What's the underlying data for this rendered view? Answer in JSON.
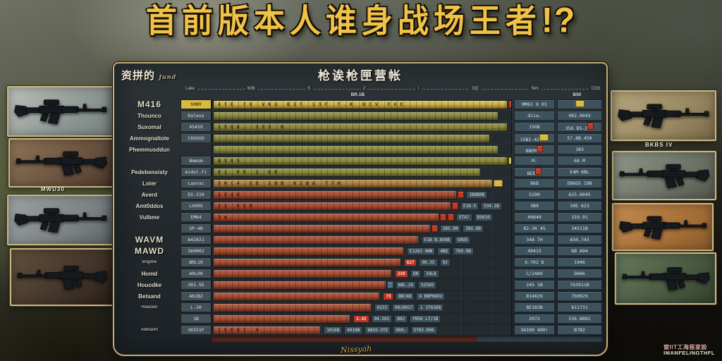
{
  "title": {
    "text": "首前版本人谁身战场王者",
    "punct": "!?"
  },
  "board": {
    "corner_label": "资拼的",
    "corner_script": "Jund",
    "header": "枪诶枪匣营帐",
    "ticks": [
      "Lake",
      "60B",
      "5",
      "2",
      "i",
      "OQ",
      "Sim",
      "CO3"
    ],
    "center_label": "BR.1B",
    "right_label": "B50",
    "signature": "Nissyah",
    "rows": [
      {
        "label": "M416",
        "size": "lg",
        "cell": "SONY",
        "bar": "gold",
        "w": 99,
        "text": "4TE  7X  VKU  BIT  13F  T.R  BIV  FUE",
        "chips": [
          "red"
        ],
        "tail": [],
        "ra": "MM62 8 03",
        "rb": "",
        "rb_chip": "gold"
      },
      {
        "label": "Thounco",
        "size": "md",
        "cell": "Daleus",
        "bar": "olive",
        "w": 96,
        "text": "",
        "chips": [],
        "tail": [],
        "ra": "diia.",
        "rb": "482.6043"
      },
      {
        "label": "Suxomal",
        "size": "md",
        "cell": "45459",
        "bar": "olive",
        "w": 99,
        "text": "15GB.  355 B",
        "chips": [],
        "tail": [],
        "ra": "15GB",
        "rb": "356 B5-2",
        "rb_chip": "red"
      },
      {
        "label": "Ammognaltote",
        "size": "md",
        "cell": "CAGUGO",
        "bar": "olive",
        "w": 93,
        "text": "",
        "chips": [],
        "tail": [],
        "ra": "15B1-42",
        "ra_chip": "gold",
        "rb": "57.8B.450"
      },
      {
        "label": "Phemmusddun",
        "size": "md",
        "cell": "",
        "bar": "olive",
        "w": 96,
        "text": "",
        "chips": [],
        "tail": [],
        "ra": "BBEM",
        "ra_chip": "red",
        "rb": "1B3"
      },
      {
        "label": "",
        "size": "md",
        "cell": "Bmmsm",
        "bar": "olive",
        "w": 99,
        "text": "BS05",
        "chips": [
          "gold"
        ],
        "tail": [],
        "ra": "M:",
        "rb": "68 M"
      },
      {
        "label": "Pedebensisty",
        "size": "md",
        "cell": "Aidol.Fi",
        "bar": "olive",
        "w": 90,
        "text": "E1 PD   1 BB",
        "chips": [],
        "tail": [],
        "ra": "BEE",
        "ra_chip": "red",
        "rb": "E4M 6BL"
      },
      {
        "label": "Loter",
        "size": "md",
        "cell": "Laorai",
        "bar": "amber",
        "w": 94,
        "text": "5H(4.50  1BB  KIBA 77H",
        "chips": [
          "gold"
        ],
        "tail": [],
        "ra": "B6B",
        "rb": "EB6G5 19B"
      },
      {
        "label": "Averd",
        "size": "md",
        "cell": "EG.S10",
        "bar": "red",
        "w": 82,
        "text": "2548",
        "chips": [
          "red"
        ],
        "tail": [
          "1B0B0B"
        ],
        "ra": "5390",
        "rb": "625.6045"
      },
      {
        "label": "Amt0ddos",
        "size": "md",
        "cell": "LX005",
        "bar": "red",
        "w": 80,
        "text": "13 65B",
        "chips": [
          "red"
        ],
        "tail": [
          "E1B-5",
          "534.1B"
        ],
        "ra": "3B9",
        "rb": "30E 623"
      },
      {
        "label": "Vulbme",
        "size": "md",
        "cell": "EM64",
        "bar": "red",
        "w": 76,
        "text": "3m",
        "chips": [
          "red",
          "red"
        ],
        "tail": [
          "ETA?",
          "B5010"
        ],
        "ra": "40840",
        "rb": "159.91"
      },
      {
        "label": "",
        "size": "md",
        "cell": "5P-4B",
        "bar": "red",
        "w": 73,
        "text": "",
        "chips": [
          "red"
        ],
        "tail": [
          "IBS.5M",
          "IBS.8B"
        ],
        "ra": "82-2K 45",
        "rb": "34511B"
      },
      {
        "label": "WAVM",
        "size": "lg",
        "cell": "A41021",
        "bar": "red",
        "w": 69,
        "text": "",
        "chips": [],
        "tail": [
          "E1B B.AVUB",
          "GRO5"
        ],
        "ra": "34A 7H",
        "rb": "A50,743"
      },
      {
        "label": "MAWD",
        "size": "lg",
        "cell": "360002",
        "bar": "red",
        "w": 64,
        "text": "",
        "chips": [],
        "tail": [
          "E1263 4NN",
          "4BD",
          "760-9B"
        ],
        "ra": "40415",
        "rb": "6B A94"
      },
      {
        "label": "Bngdne",
        "size": "sm",
        "cell": "BRL10",
        "bar": "red",
        "w": 63,
        "text": "",
        "chips": [],
        "hot": true,
        "tail": [
          "G27",
          "09.35",
          "92"
        ],
        "ra": "X-702 D",
        "rb": "1946"
      },
      {
        "label": "Homd",
        "size": "md",
        "cell": "A0L00",
        "bar": "red",
        "w": 60,
        "text": "",
        "chips": [],
        "hot": true,
        "tail": [
          "2X8",
          "DN",
          "34L8"
        ],
        "ra": "C/24A0",
        "rb": "D666"
      },
      {
        "label": "Houodke",
        "size": "md",
        "cell": "301.SE",
        "bar": "red",
        "w": 58,
        "text": "",
        "chips": [
          "slate"
        ],
        "tail": [
          "6BL.26",
          "52565"
        ],
        "ra": "245 1B",
        "rb": "763911B"
      },
      {
        "label": "Betsand",
        "size": "md",
        "cell": "A61B2",
        "bar": "red",
        "w": 56,
        "text": "",
        "chips": [],
        "hot": true,
        "tail": [
          "73",
          "BB(4B",
          "A BBPHA5U"
        ],
        "ra": "B14639",
        "rb": "760029"
      },
      {
        "label": "Hwacker",
        "size": "sm",
        "cell": "L-20",
        "bar": "red",
        "w": 53,
        "text": "",
        "chips": [],
        "tail": [
          "6223",
          "90/8017",
          "L 376368"
        ],
        "ra": "8E183B",
        "rb": "811731"
      },
      {
        "label": "",
        "size": "md",
        "cell": "1B",
        "bar": "red",
        "w": 46,
        "text": "",
        "chips": [],
        "hot": true,
        "tail": [
          "2.42",
          "04.501",
          "B62",
          "FB56 L7/1B"
        ],
        "ra": "2072",
        "rb": "536.86B1"
      },
      {
        "label": "Adbravm",
        "size": "sm",
        "cell": "36551F",
        "bar": "red",
        "w": 36,
        "text": "(5PO) 4",
        "chips": [],
        "tail": [
          "1016B",
          "4010B",
          "BASS-STE",
          "900;",
          "5765.R06"
        ],
        "ra": "36100 400!",
        "rb": "B7B2"
      }
    ]
  },
  "left_panels": {
    "caption": "MWD30"
  },
  "right_panels": {
    "caption": "BKBS IV"
  },
  "watermark": {
    "line1": "窗IIT工海报家脸",
    "line2": "IMANFELINGTHFL"
  },
  "colors": {
    "accent_gold": "#e8bb45",
    "gold_bar": "#d8ba42",
    "olive_bar": "#8f8c3a",
    "amber_bar": "#b5823a",
    "red_bar": "#ad4a2c",
    "cell_teal": "#3e525e",
    "chip_red": "#c23824"
  }
}
